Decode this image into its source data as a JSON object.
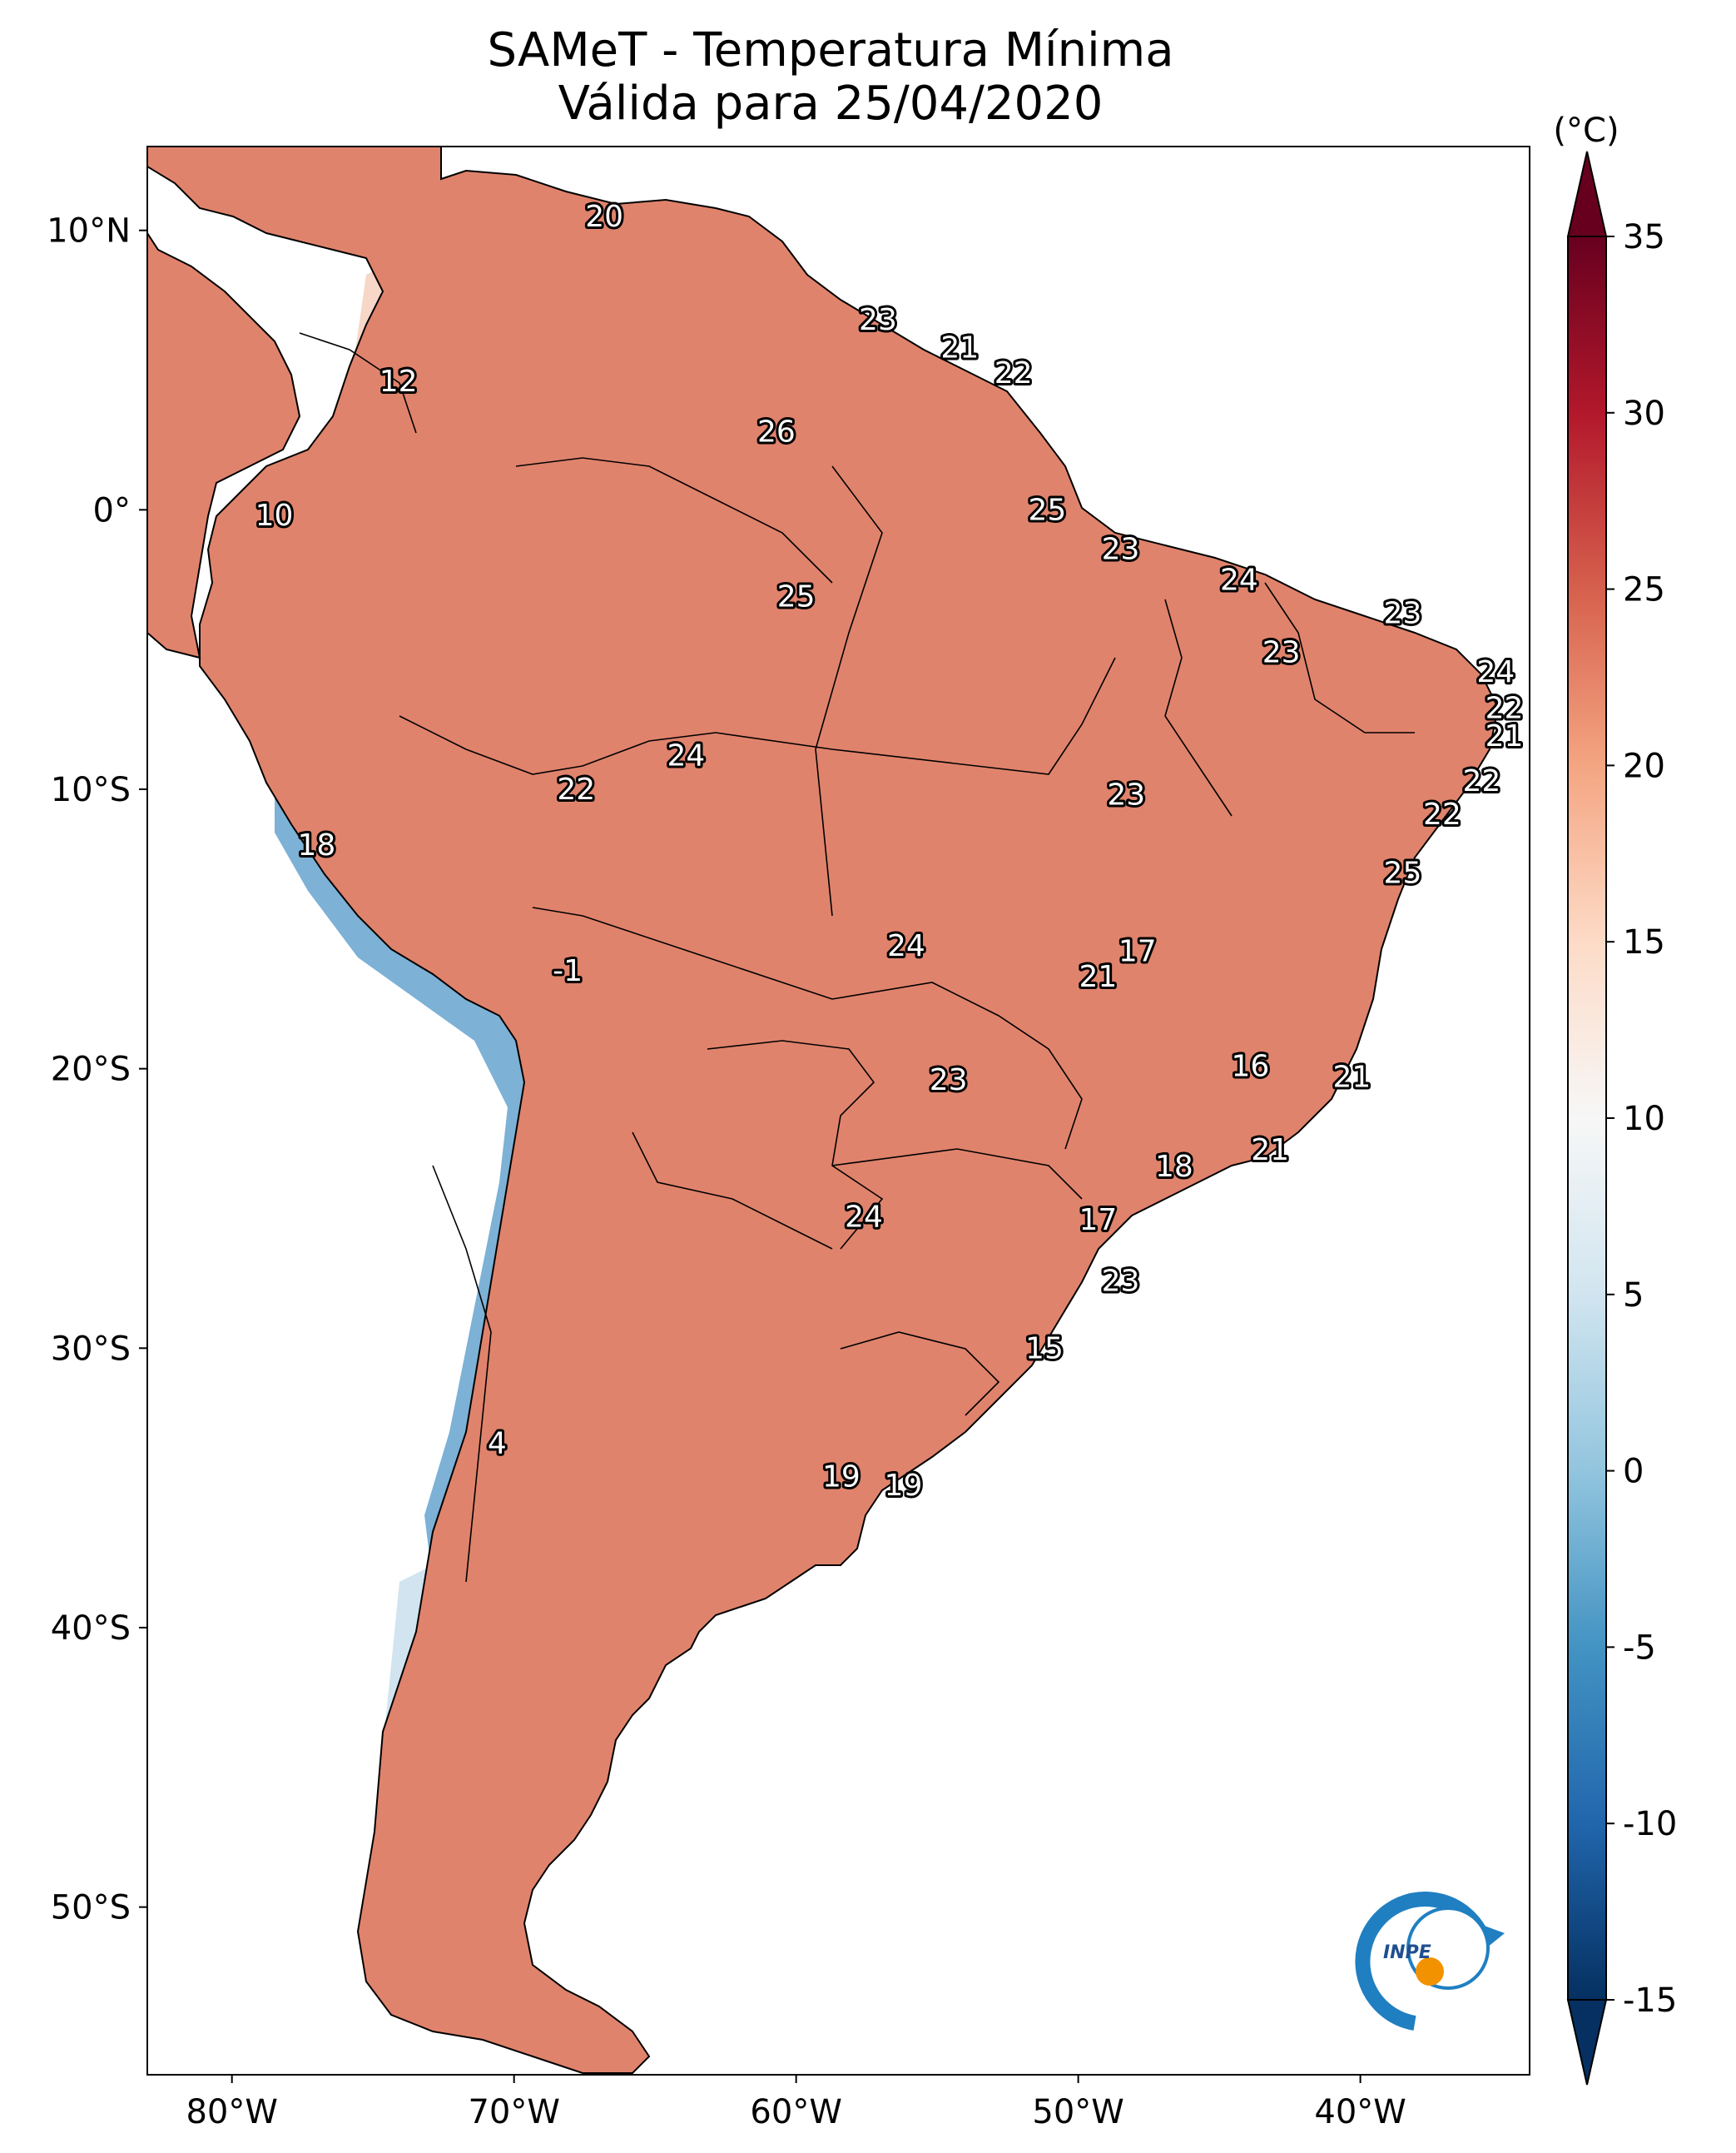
{
  "title": {
    "line1": "SAMeT - Temperatura Mínima",
    "line2": "Válida para 25/04/2020"
  },
  "map": {
    "lon_range": [
      -83,
      -34
    ],
    "lat_range": [
      -56,
      13
    ],
    "lon_ticks": [
      {
        "value": -80,
        "label": "80°W"
      },
      {
        "value": -70,
        "label": "70°W"
      },
      {
        "value": -60,
        "label": "60°W"
      },
      {
        "value": -50,
        "label": "50°W"
      },
      {
        "value": -40,
        "label": "40°W"
      }
    ],
    "lat_ticks": [
      {
        "value": 10,
        "label": "10°N"
      },
      {
        "value": 0,
        "label": "0°"
      },
      {
        "value": -10,
        "label": "10°S"
      },
      {
        "value": -20,
        "label": "20°S"
      },
      {
        "value": -30,
        "label": "30°S"
      },
      {
        "value": -40,
        "label": "40°S"
      },
      {
        "value": -50,
        "label": "50°S"
      }
    ],
    "city_values": [
      {
        "lon": -66.8,
        "lat": 10.5,
        "label": "20"
      },
      {
        "lon": -57.1,
        "lat": 6.8,
        "label": "23"
      },
      {
        "lon": -54.2,
        "lat": 5.8,
        "label": "21"
      },
      {
        "lon": -52.3,
        "lat": 4.9,
        "label": "22"
      },
      {
        "lon": -74.1,
        "lat": 4.6,
        "label": "12"
      },
      {
        "lon": -60.7,
        "lat": 2.8,
        "label": "26"
      },
      {
        "lon": -78.5,
        "lat": -0.2,
        "label": "10"
      },
      {
        "lon": -51.1,
        "lat": 0.0,
        "label": "25"
      },
      {
        "lon": -48.5,
        "lat": -1.4,
        "label": "23"
      },
      {
        "lon": -44.3,
        "lat": -2.5,
        "label": "24"
      },
      {
        "lon": -60.0,
        "lat": -3.1,
        "label": "25"
      },
      {
        "lon": -38.5,
        "lat": -3.7,
        "label": "23"
      },
      {
        "lon": -42.8,
        "lat": -5.1,
        "label": "23"
      },
      {
        "lon": -35.2,
        "lat": -5.8,
        "label": "24"
      },
      {
        "lon": -34.9,
        "lat": -7.1,
        "label": "22"
      },
      {
        "lon": -34.9,
        "lat": -8.1,
        "label": "21"
      },
      {
        "lon": -63.9,
        "lat": -8.8,
        "label": "24"
      },
      {
        "lon": -35.7,
        "lat": -9.7,
        "label": "22"
      },
      {
        "lon": -67.8,
        "lat": -10.0,
        "label": "22"
      },
      {
        "lon": -48.3,
        "lat": -10.2,
        "label": "23"
      },
      {
        "lon": -37.1,
        "lat": -10.9,
        "label": "22"
      },
      {
        "lon": -77.0,
        "lat": -12.0,
        "label": "18"
      },
      {
        "lon": -38.5,
        "lat": -13.0,
        "label": "25"
      },
      {
        "lon": -56.1,
        "lat": -15.6,
        "label": "24"
      },
      {
        "lon": -47.9,
        "lat": -15.8,
        "label": "17"
      },
      {
        "lon": -49.3,
        "lat": -16.7,
        "label": "21"
      },
      {
        "lon": -68.1,
        "lat": -16.5,
        "label": "-1"
      },
      {
        "lon": -43.9,
        "lat": -19.9,
        "label": "16"
      },
      {
        "lon": -40.3,
        "lat": -20.3,
        "label": "21"
      },
      {
        "lon": -54.6,
        "lat": -20.4,
        "label": "23"
      },
      {
        "lon": -43.2,
        "lat": -22.9,
        "label": "21"
      },
      {
        "lon": -46.6,
        "lat": -23.5,
        "label": "18"
      },
      {
        "lon": -57.6,
        "lat": -25.3,
        "label": "24"
      },
      {
        "lon": -49.3,
        "lat": -25.4,
        "label": "17"
      },
      {
        "lon": -48.5,
        "lat": -27.6,
        "label": "23"
      },
      {
        "lon": -51.2,
        "lat": -30.0,
        "label": "15"
      },
      {
        "lon": -70.6,
        "lat": -33.4,
        "label": "4"
      },
      {
        "lon": -58.4,
        "lat": -34.6,
        "label": "19"
      },
      {
        "lon": -56.2,
        "lat": -34.9,
        "label": "19"
      }
    ],
    "land_color": "#e0836c"
  },
  "colorbar": {
    "unit": "(°C)",
    "min": -15,
    "max": 35,
    "ticks": [
      {
        "value": 35,
        "label": "35"
      },
      {
        "value": 30,
        "label": "30"
      },
      {
        "value": 25,
        "label": "25"
      },
      {
        "value": 20,
        "label": "20"
      },
      {
        "value": 15,
        "label": "15"
      },
      {
        "value": 10,
        "label": "10"
      },
      {
        "value": 5,
        "label": "5"
      },
      {
        "value": 0,
        "label": "0"
      },
      {
        "value": -5,
        "label": "-5"
      },
      {
        "value": -10,
        "label": "-10"
      },
      {
        "value": -15,
        "label": "-15"
      }
    ],
    "stops": [
      {
        "value": -15,
        "color": "#053061"
      },
      {
        "value": -10,
        "color": "#2166ac"
      },
      {
        "value": -5,
        "color": "#4393c3"
      },
      {
        "value": 0,
        "color": "#92c5de"
      },
      {
        "value": 5,
        "color": "#d1e5f0"
      },
      {
        "value": 10,
        "color": "#f7f7f7"
      },
      {
        "value": 15,
        "color": "#fddbc7"
      },
      {
        "value": 20,
        "color": "#f4a582"
      },
      {
        "value": 25,
        "color": "#d6604d"
      },
      {
        "value": 30,
        "color": "#b2182b"
      },
      {
        "value": 35,
        "color": "#67001f"
      }
    ]
  },
  "logo": {
    "label": "INPE",
    "ring_color": "#1f7fc1",
    "dot_color": "#f39200"
  }
}
